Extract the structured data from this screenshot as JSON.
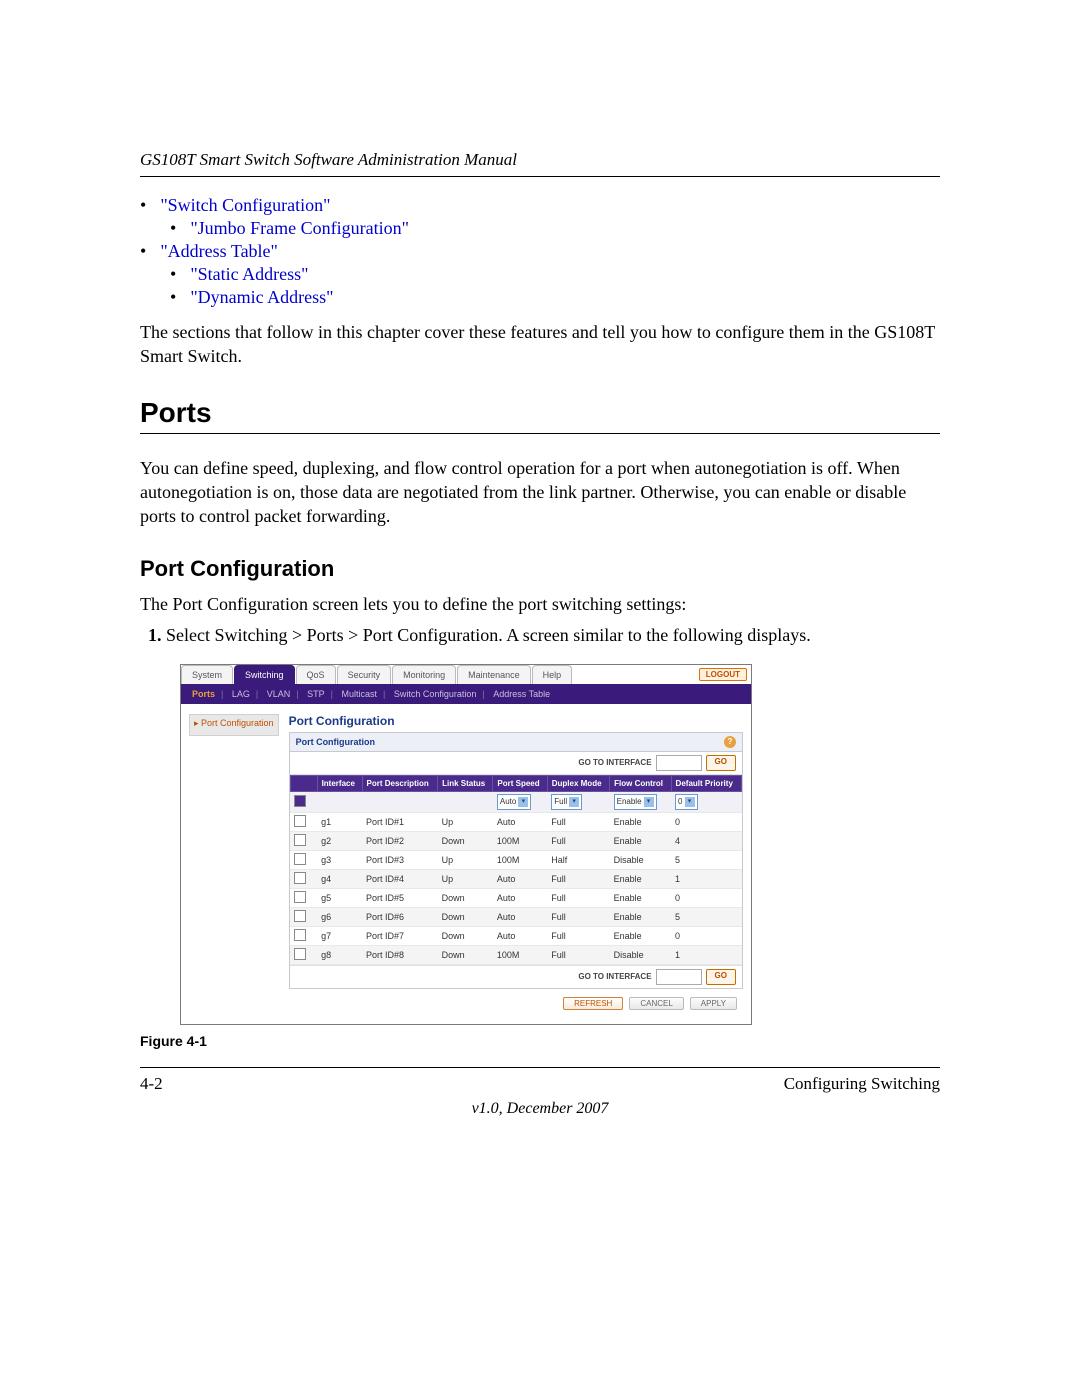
{
  "doc": {
    "header": "GS108T Smart Switch Software Administration Manual",
    "toc": {
      "i0": "\"Switch Configuration\"",
      "i1": "\"Jumbo Frame Configuration\"",
      "i2": "\"Address Table\"",
      "i3": "\"Static Address\"",
      "i4": "\"Dynamic Address\""
    },
    "para1": "The sections that follow in this chapter cover these features and tell you how to configure them in the GS108T Smart Switch.",
    "h2_ports": "Ports",
    "para2": "You can define speed, duplexing, and flow control operation for a port when autonegotiation is off. When autonegotiation is on, those data are negotiated from the link partner. Otherwise, you can enable or disable ports to control packet forwarding.",
    "h3_portcfg": "Port Configuration",
    "para3": "The Port Configuration screen lets you to define the port switching settings:",
    "step1": "Select Switching > Ports > Port Configuration. A screen similar to the following displays.",
    "figcap": "Figure 4-1",
    "pagenum": "4-2",
    "sectionname": "Configuring Switching",
    "version": "v1.0, December 2007"
  },
  "shot": {
    "tabs": {
      "t0": "System",
      "t1": "Switching",
      "t2": "QoS",
      "t3": "Security",
      "t4": "Monitoring",
      "t5": "Maintenance",
      "t6": "Help"
    },
    "logout": "LOGOUT",
    "sub": {
      "s0": "Ports",
      "s1": "LAG",
      "s2": "VLAN",
      "s3": "STP",
      "s4": "Multicast",
      "s5": "Switch Configuration",
      "s6": "Address Table"
    },
    "sidelabel": "▸ Port Configuration",
    "panel_title": "Port Configuration",
    "panel_head": "Port Configuration",
    "goto_label": "GO TO INTERFACE",
    "go": "GO",
    "columns": {
      "c0": "",
      "c1": "Interface",
      "c2": "Port Description",
      "c3": "Link Status",
      "c4": "Port Speed",
      "c5": "Duplex Mode",
      "c6": "Flow Control",
      "c7": "Default Priority"
    },
    "filter": {
      "speed": "Auto",
      "duplex": "Full",
      "flow": "Enable",
      "prio": "0"
    },
    "rows": [
      {
        "if": "g1",
        "desc": "Port ID#1",
        "link": "Up",
        "speed": "Auto",
        "dup": "Full",
        "flow": "Enable",
        "prio": "0"
      },
      {
        "if": "g2",
        "desc": "Port ID#2",
        "link": "Down",
        "speed": "100M",
        "dup": "Full",
        "flow": "Enable",
        "prio": "4"
      },
      {
        "if": "g3",
        "desc": "Port ID#3",
        "link": "Up",
        "speed": "100M",
        "dup": "Half",
        "flow": "Disable",
        "prio": "5"
      },
      {
        "if": "g4",
        "desc": "Port ID#4",
        "link": "Up",
        "speed": "Auto",
        "dup": "Full",
        "flow": "Enable",
        "prio": "1"
      },
      {
        "if": "g5",
        "desc": "Port ID#5",
        "link": "Down",
        "speed": "Auto",
        "dup": "Full",
        "flow": "Enable",
        "prio": "0"
      },
      {
        "if": "g6",
        "desc": "Port ID#6",
        "link": "Down",
        "speed": "Auto",
        "dup": "Full",
        "flow": "Enable",
        "prio": "5"
      },
      {
        "if": "g7",
        "desc": "Port ID#7",
        "link": "Down",
        "speed": "Auto",
        "dup": "Full",
        "flow": "Enable",
        "prio": "0"
      },
      {
        "if": "g8",
        "desc": "Port ID#8",
        "link": "Down",
        "speed": "100M",
        "dup": "Full",
        "flow": "Disable",
        "prio": "1"
      }
    ],
    "buttons": {
      "refresh": "REFRESH",
      "cancel": "CANCEL",
      "apply": "APPLY"
    }
  },
  "style": {
    "link_color": "#0000cc",
    "tab_active_bg": "#3a1a7a",
    "th_bg": "#4a2a8a",
    "accent_orange": "#c05000"
  }
}
